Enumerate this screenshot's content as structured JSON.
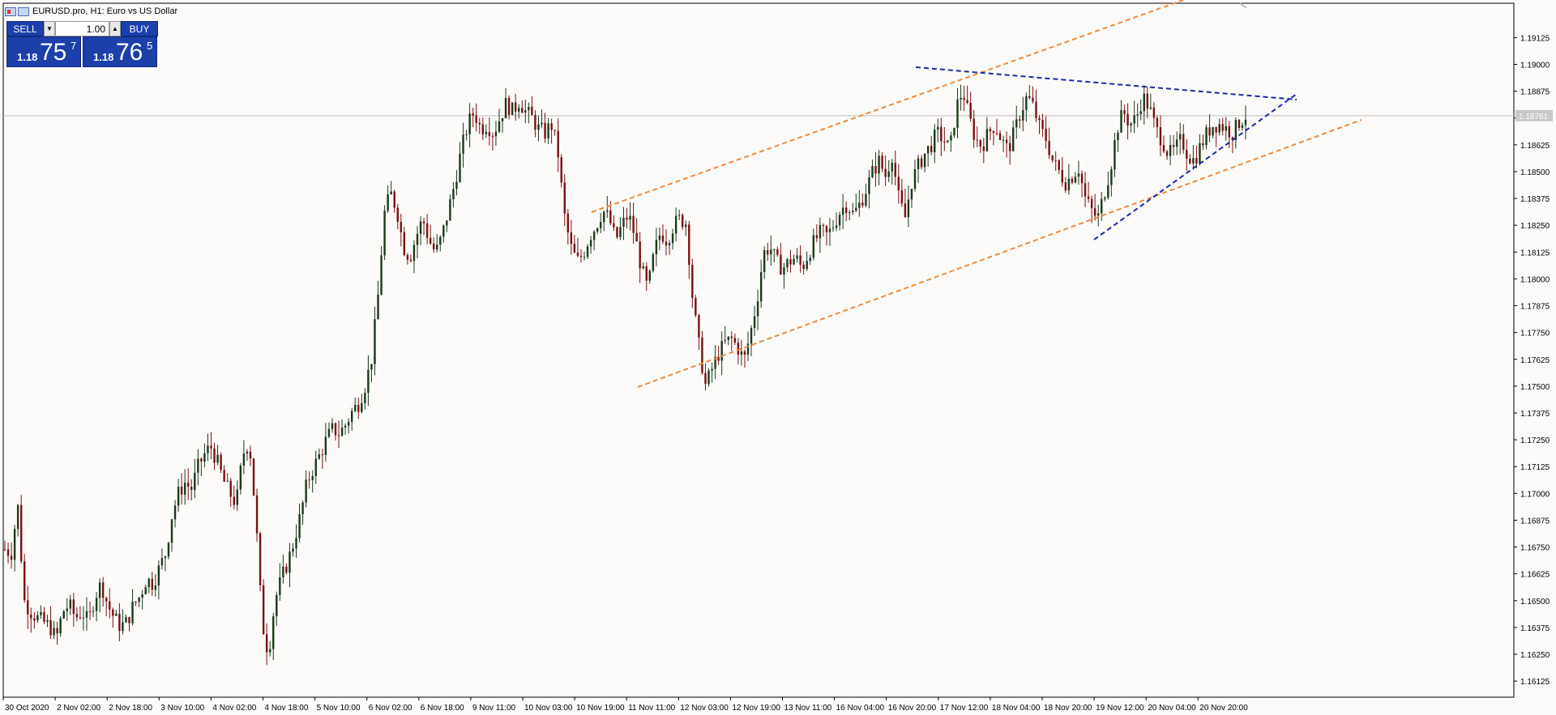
{
  "window": {
    "title": "EURUSD.pro, H1:  Euro vs US Dollar"
  },
  "trade_panel": {
    "sell_label": "SELL",
    "buy_label": "BUY",
    "volume": "1.00",
    "sell_price": {
      "prefix": "1.18",
      "big": "75",
      "sup": "7"
    },
    "buy_price": {
      "prefix": "1.18",
      "big": "76",
      "sup": "5"
    }
  },
  "colors": {
    "background": "#fdfafa",
    "bull_candle": "#1a3a1a",
    "bear_candle": "#7a1010",
    "channel_line": "#f08a3c",
    "triangle_line": "#1a2aa8",
    "price_line": "#c0c0c0"
  },
  "chart_data": {
    "type": "candlestick",
    "symbol": "EURUSD.pro",
    "timeframe": "H1",
    "ylim": [
      1.1605,
      1.19285
    ],
    "y_ticks": [
      "1.19125",
      "1.19000",
      "1.18875",
      "1.18750",
      "1.18625",
      "1.18500",
      "1.18375",
      "1.18250",
      "1.18125",
      "1.18000",
      "1.17875",
      "1.17750",
      "1.17625",
      "1.17500",
      "1.17375",
      "1.17250",
      "1.17125",
      "1.17000",
      "1.16875",
      "1.16750",
      "1.16625",
      "1.16500",
      "1.16375",
      "1.16250",
      "1.16125"
    ],
    "x_ticks": [
      "30 Oct 2020",
      "2 Nov 02:00",
      "2 Nov 18:00",
      "3 Nov 10:00",
      "4 Nov 02:00",
      "4 Nov 18:00",
      "5 Nov 10:00",
      "6 Nov 02:00",
      "6 Nov 18:00",
      "9 Nov 11:00",
      "10 Nov 03:00",
      "10 Nov 19:00",
      "11 Nov 11:00",
      "12 Nov 03:00",
      "12 Nov 19:00",
      "13 Nov 11:00",
      "16 Nov 04:00",
      "16 Nov 20:00",
      "17 Nov 12:00",
      "18 Nov 04:00",
      "18 Nov 20:00",
      "19 Nov 12:00",
      "20 Nov 04:00",
      "20 Nov 20:00"
    ],
    "current_price": "1.18761",
    "close_path": [
      1.1674,
      1.1672,
      1.1695,
      1.165,
      1.1645,
      1.1642,
      1.164,
      1.1638,
      1.1632,
      1.1645,
      1.1648,
      1.1642,
      1.1645,
      1.164,
      1.1652,
      1.1658,
      1.1648,
      1.1642,
      1.1638,
      1.164,
      1.1648,
      1.1652,
      1.166,
      1.1658,
      1.1665,
      1.1672,
      1.169,
      1.17,
      1.1705,
      1.1702,
      1.1712,
      1.1718,
      1.1722,
      1.1715,
      1.1706,
      1.17,
      1.1695,
      1.1718,
      1.1725,
      1.169,
      1.164,
      1.1625,
      1.165,
      1.166,
      1.1668,
      1.1678,
      1.169,
      1.1705,
      1.1712,
      1.1718,
      1.1725,
      1.173,
      1.1728,
      1.1732,
      1.1738,
      1.1742,
      1.175,
      1.1762,
      1.179,
      1.183,
      1.184,
      1.1832,
      1.1815,
      1.181,
      1.182,
      1.1828,
      1.1818,
      1.1812,
      1.182,
      1.1832,
      1.1845,
      1.186,
      1.1872,
      1.1878,
      1.187,
      1.1872,
      1.1868,
      1.1875,
      1.1882,
      1.1878,
      1.1883,
      1.1878,
      1.1875,
      1.187,
      1.1868,
      1.1872,
      1.186,
      1.183,
      1.1815,
      1.1808,
      1.1812,
      1.182,
      1.1825,
      1.1832,
      1.1828,
      1.1818,
      1.1825,
      1.183,
      1.182,
      1.1805,
      1.1795,
      1.1812,
      1.1822,
      1.1818,
      1.1825,
      1.1828,
      1.1826,
      1.179,
      1.1768,
      1.175,
      1.1758,
      1.1765,
      1.177,
      1.1772,
      1.1768,
      1.1762,
      1.1775,
      1.179,
      1.1812,
      1.1815,
      1.1808,
      1.1805,
      1.1808,
      1.181,
      1.1805,
      1.1812,
      1.1818,
      1.1822,
      1.182,
      1.1826,
      1.1832,
      1.1835,
      1.183,
      1.1835,
      1.1842,
      1.185,
      1.1855,
      1.1848,
      1.1858,
      1.1838,
      1.1828,
      1.1845,
      1.1852,
      1.1858,
      1.1862,
      1.1868,
      1.1865,
      1.186,
      1.188,
      1.1888,
      1.1875,
      1.1865,
      1.1862,
      1.1868,
      1.1872,
      1.1865,
      1.186,
      1.1868,
      1.1878,
      1.1885,
      1.188,
      1.187,
      1.1865,
      1.1855,
      1.185,
      1.1845,
      1.1848,
      1.1852,
      1.1838,
      1.1832,
      1.1828,
      1.184,
      1.1852,
      1.187,
      1.1878,
      1.1872,
      1.1875,
      1.1885,
      1.188,
      1.187,
      1.1865,
      1.1858,
      1.186,
      1.1865,
      1.1858,
      1.1855,
      1.1862,
      1.1868,
      1.1872,
      1.1872,
      1.187,
      1.1868,
      1.1873,
      1.1876
    ]
  }
}
